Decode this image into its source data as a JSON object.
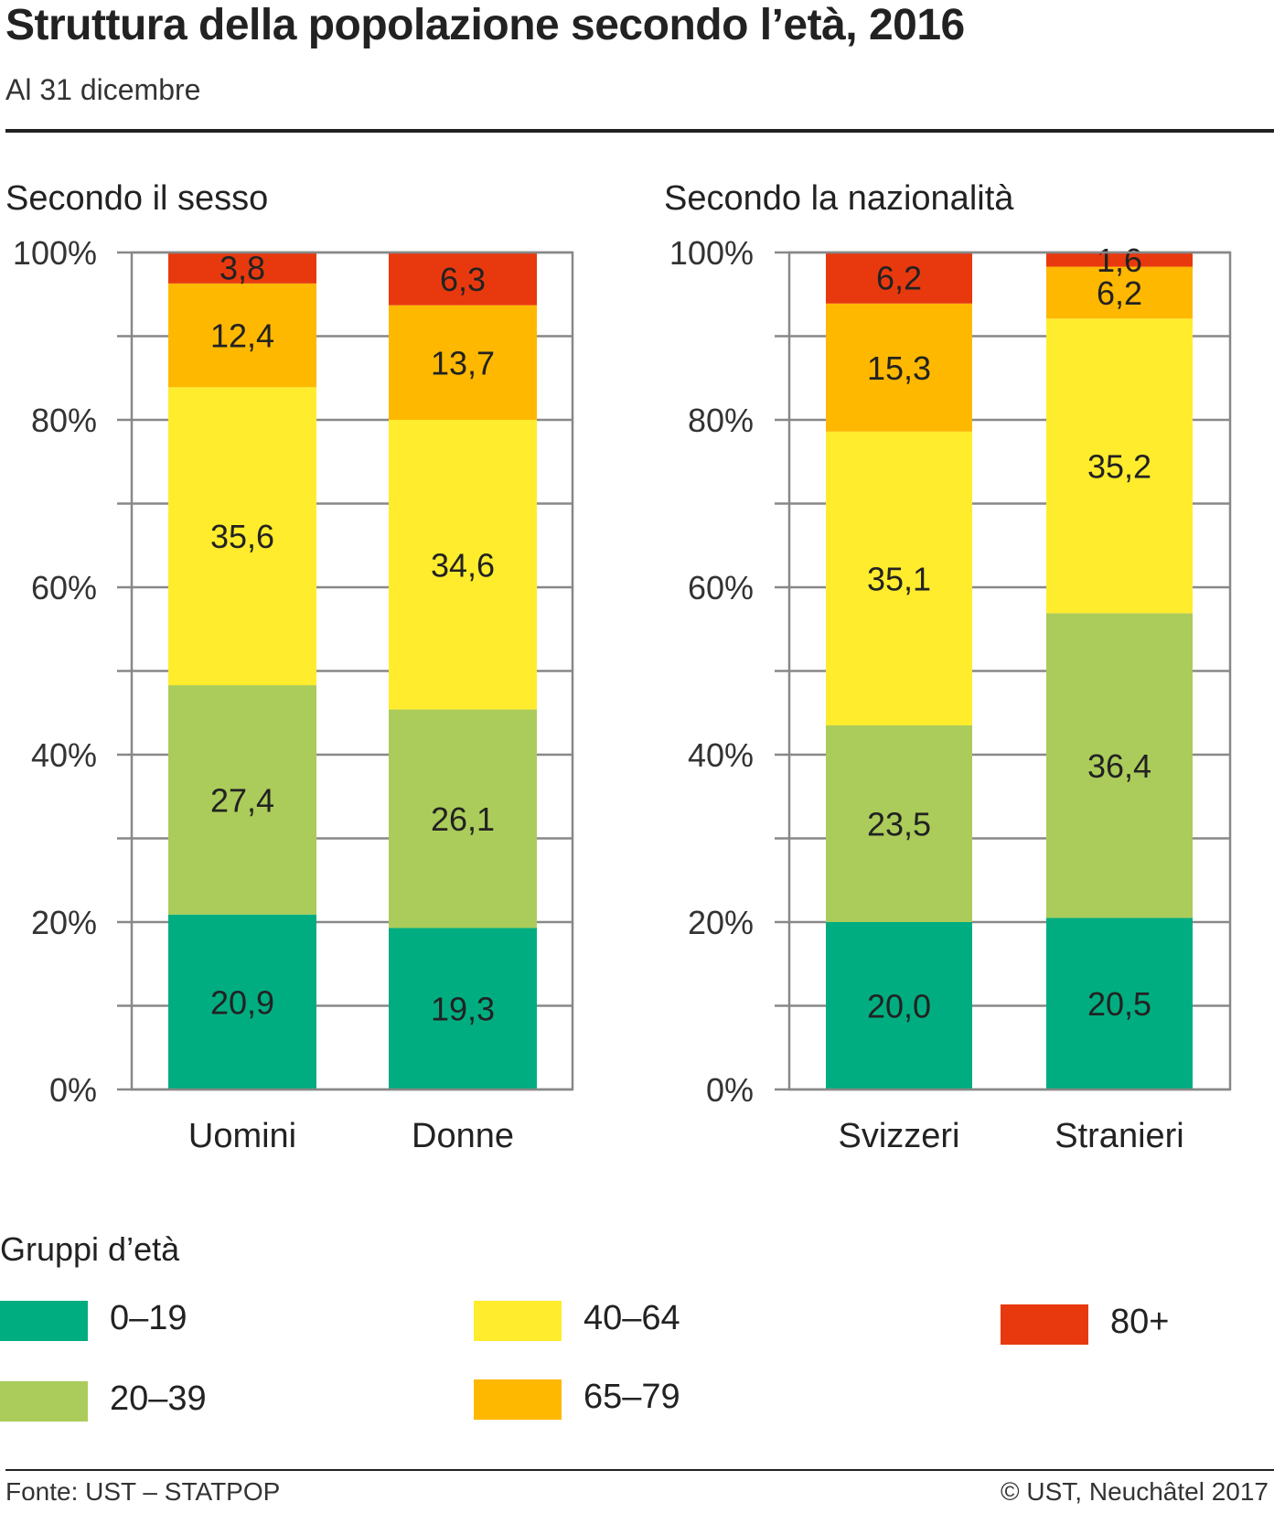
{
  "title": "Struttura della popolazione secondo l’età, 2016",
  "subtitle": "Al 31 dicembre",
  "legend": {
    "title": "Gruppi d’età",
    "items": [
      {
        "label": "0–19",
        "color": "#00ad80"
      },
      {
        "label": "20–39",
        "color": "#abcc5a"
      },
      {
        "label": "40–64",
        "color": "#ffec2d"
      },
      {
        "label": "65–79",
        "color": "#ffb800"
      },
      {
        "label": "80+",
        "color": "#e8390e"
      }
    ]
  },
  "footer": {
    "source": "Fonte: UST – STATPOP",
    "copyright": "© UST, Neuchâtel 2017"
  },
  "chart_data": [
    {
      "type": "bar",
      "stacked": true,
      "title": "Secondo il sesso",
      "categories": [
        "Uomini",
        "Donne"
      ],
      "ylim": [
        0,
        100
      ],
      "yticks": [
        "0%",
        "20%",
        "40%",
        "60%",
        "80%",
        "100%"
      ],
      "grid": true,
      "series": [
        {
          "name": "0–19",
          "values": [
            20.9,
            19.3
          ],
          "labels": [
            "20,9",
            "19,3"
          ]
        },
        {
          "name": "20–39",
          "values": [
            27.4,
            26.1
          ],
          "labels": [
            "27,4",
            "26,1"
          ]
        },
        {
          "name": "40–64",
          "values": [
            35.6,
            34.6
          ],
          "labels": [
            "35,6",
            "34,6"
          ]
        },
        {
          "name": "65–79",
          "values": [
            12.4,
            13.7
          ],
          "labels": [
            "12,4",
            "13,7"
          ]
        },
        {
          "name": "80+",
          "values": [
            3.8,
            6.3
          ],
          "labels": [
            "3,8",
            "6,3"
          ]
        }
      ]
    },
    {
      "type": "bar",
      "stacked": true,
      "title": "Secondo la nazionalità",
      "categories": [
        "Svizzeri",
        "Stranieri"
      ],
      "ylim": [
        0,
        100
      ],
      "yticks": [
        "0%",
        "20%",
        "40%",
        "60%",
        "80%",
        "100%"
      ],
      "grid": true,
      "series": [
        {
          "name": "0–19",
          "values": [
            20.0,
            20.5
          ],
          "labels": [
            "20,0",
            "20,5"
          ]
        },
        {
          "name": "20–39",
          "values": [
            23.5,
            36.4
          ],
          "labels": [
            "23,5",
            "36,4"
          ]
        },
        {
          "name": "40–64",
          "values": [
            35.1,
            35.2
          ],
          "labels": [
            "35,1",
            "35,2"
          ]
        },
        {
          "name": "65–79",
          "values": [
            15.3,
            6.2
          ],
          "labels": [
            "15,3",
            "6,2"
          ]
        },
        {
          "name": "80+",
          "values": [
            6.2,
            1.6
          ],
          "labels": [
            "6,2",
            "1,6"
          ]
        }
      ]
    }
  ]
}
